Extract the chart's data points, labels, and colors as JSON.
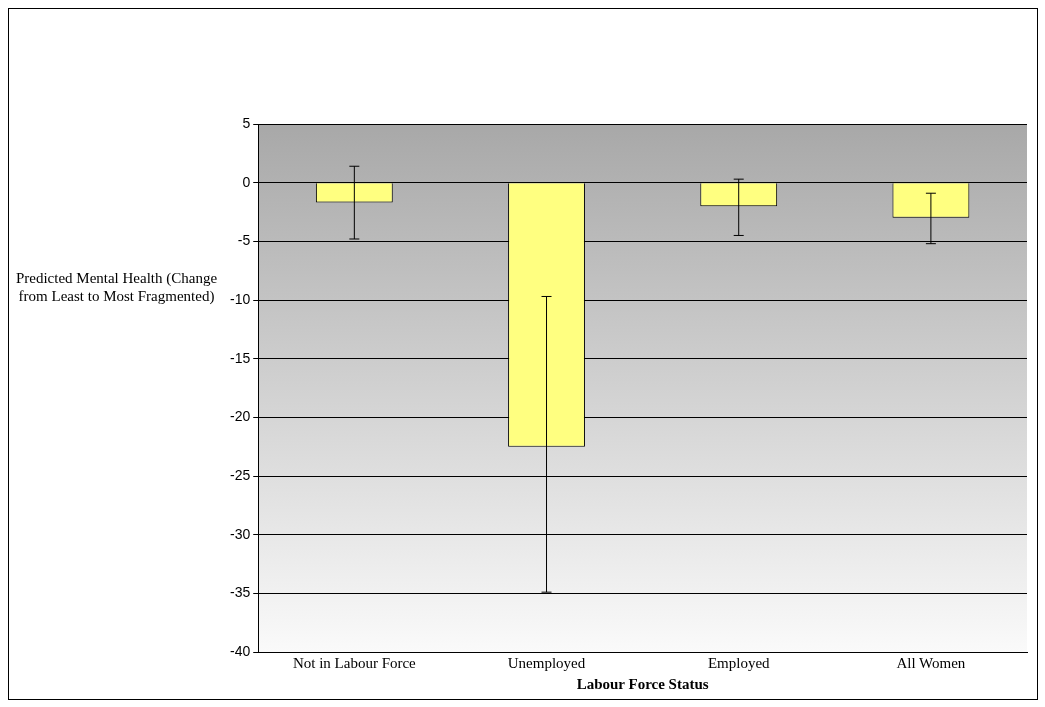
{
  "chart_data": {
    "type": "bar",
    "xlabel": "Labour Force Status",
    "ylabel": "Predicted Mental Health (Change from Least to Most Fragmented)",
    "categories": [
      "Not in Labour Force",
      "Unemployed",
      "Employed",
      "All Women"
    ],
    "values": [
      -1.7,
      -22.5,
      -2.0,
      -3.0
    ],
    "errors": [
      [
        -4.8,
        1.4
      ],
      [
        -34.9,
        -9.7
      ],
      [
        -4.5,
        0.3
      ],
      [
        -5.2,
        -0.9
      ]
    ],
    "color": "#ffff80",
    "ylim": [
      -40,
      5
    ],
    "yticks": [
      -40,
      -35,
      -30,
      -25,
      -20,
      -15,
      -10,
      -5,
      0,
      5
    ],
    "grid": "y",
    "legend": false
  }
}
